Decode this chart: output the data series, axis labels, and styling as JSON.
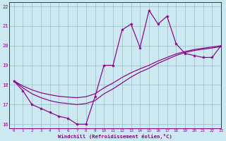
{
  "xlabel": "Windchill (Refroidissement éolien,°C)",
  "background_color": "#cce8f0",
  "line_color": "#880088",
  "grid_color": "#99bbcc",
  "xlim": [
    -0.5,
    23
  ],
  "ylim": [
    15.8,
    22.2
  ],
  "yticks": [
    16,
    17,
    18,
    19,
    20,
    21,
    22
  ],
  "xticks": [
    0,
    1,
    2,
    3,
    4,
    5,
    6,
    7,
    8,
    9,
    10,
    11,
    12,
    13,
    14,
    15,
    16,
    17,
    18,
    19,
    20,
    21,
    22,
    23
  ],
  "hours": [
    0,
    1,
    2,
    3,
    4,
    5,
    6,
    7,
    8,
    9,
    10,
    11,
    12,
    13,
    14,
    15,
    16,
    17,
    18,
    19,
    20,
    21,
    22,
    23
  ],
  "temp": [
    18.2,
    17.7,
    17.0,
    16.8,
    16.6,
    16.4,
    16.3,
    16.0,
    16.0,
    17.4,
    19.0,
    19.0,
    20.8,
    21.1,
    19.9,
    21.8,
    21.1,
    21.5,
    20.1,
    19.6,
    19.5,
    19.4,
    19.4,
    20.0
  ],
  "wc1": [
    18.2,
    17.85,
    17.55,
    17.35,
    17.2,
    17.1,
    17.05,
    17.0,
    17.05,
    17.2,
    17.55,
    17.8,
    18.1,
    18.4,
    18.65,
    18.85,
    19.1,
    19.3,
    19.5,
    19.65,
    19.75,
    19.82,
    19.88,
    19.95
  ],
  "wc2": [
    18.2,
    17.95,
    17.75,
    17.6,
    17.5,
    17.42,
    17.38,
    17.35,
    17.4,
    17.55,
    17.85,
    18.1,
    18.38,
    18.62,
    18.82,
    19.0,
    19.22,
    19.4,
    19.58,
    19.7,
    19.8,
    19.87,
    19.93,
    20.0
  ]
}
